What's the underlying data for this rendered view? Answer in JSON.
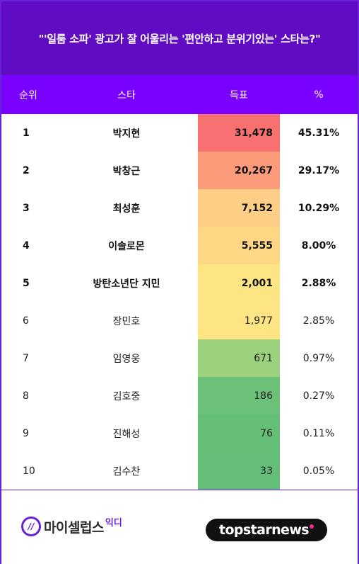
{
  "title": "\"'일룸 소파' 광고가 잘 어울리는 '편안하고 분위기있는' 스타는?\"",
  "columns": {
    "rank": "순위",
    "star": "스타",
    "votes": "득표",
    "percent": "%"
  },
  "rows": [
    {
      "rank": "1",
      "star": "박지현",
      "votes": "31,478",
      "percent": "45.31%",
      "color": "#f87171"
    },
    {
      "rank": "2",
      "star": "박창근",
      "votes": "20,267",
      "percent": "29.17%",
      "color": "#fb9b79"
    },
    {
      "rank": "3",
      "star": "최성훈",
      "votes": "7,152",
      "percent": "10.29%",
      "color": "#fdcf86"
    },
    {
      "rank": "4",
      "star": "이솔로몬",
      "votes": "5,555",
      "percent": "8.00%",
      "color": "#fed785"
    },
    {
      "rank": "5",
      "star": "방탄소년단 지민",
      "votes": "2,001",
      "percent": "2.88%",
      "color": "#fde584"
    },
    {
      "rank": "6",
      "star": "장민호",
      "votes": "1,977",
      "percent": "2.85%",
      "color": "#fde584"
    },
    {
      "rank": "7",
      "star": "임영웅",
      "votes": "671",
      "percent": "0.97%",
      "color": "#9bd07c"
    },
    {
      "rank": "8",
      "star": "김호중",
      "votes": "186",
      "percent": "0.27%",
      "color": "#6bc177"
    },
    {
      "rank": "9",
      "star": "진해성",
      "votes": "76",
      "percent": "0.11%",
      "color": "#66bf77"
    },
    {
      "rank": "10",
      "star": "김수찬",
      "votes": "33",
      "percent": "0.05%",
      "color": "#64be77"
    }
  ],
  "footer": {
    "left_logo": "마이셀럽스",
    "left_logo_sub": "익디",
    "right_logo": "topstarnews"
  },
  "colors": {
    "title_bg": "#5f0cc2",
    "header_bg": "#7a00ff",
    "border": "#6a22d6"
  }
}
